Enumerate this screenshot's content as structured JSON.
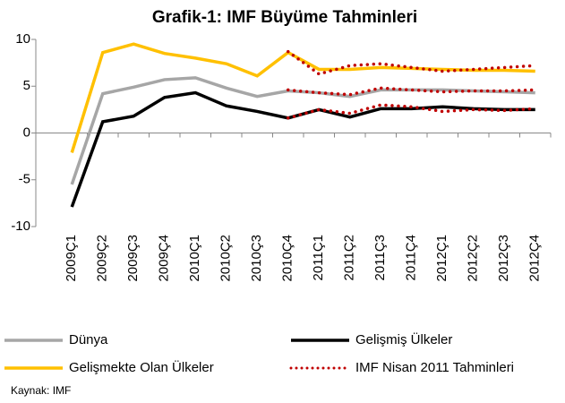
{
  "chart_data": {
    "type": "line",
    "title": "Grafik-1: IMF Büyüme Tahminleri",
    "source": "Kaynak: IMF",
    "categories": [
      "2009Ç1",
      "2009Ç2",
      "2009Ç3",
      "2009Ç4",
      "2010Ç1",
      "2010Ç2",
      "2010Ç3",
      "2010Ç4",
      "2011Ç1",
      "2011Ç2",
      "2011Ç3",
      "2011Ç4",
      "2012Ç1",
      "2012Ç2",
      "2012Ç3",
      "2012Ç4"
    ],
    "ylim": [
      -10,
      10
    ],
    "yticks": [
      -10,
      -5,
      0,
      5,
      10
    ],
    "grid": false,
    "series": [
      {
        "name": "Dünya",
        "color": "#a6a6a6",
        "values": [
          -5.5,
          4.2,
          4.9,
          5.7,
          5.9,
          4.8,
          3.9,
          4.5,
          4.3,
          3.9,
          4.6,
          4.6,
          4.6,
          4.5,
          4.4,
          4.3
        ]
      },
      {
        "name": "Gelişmiş Ülkeler",
        "color": "#000000",
        "values": [
          -7.9,
          1.2,
          1.8,
          3.8,
          4.3,
          2.9,
          2.3,
          1.6,
          2.5,
          1.7,
          2.6,
          2.6,
          2.8,
          2.6,
          2.5,
          2.5
        ]
      },
      {
        "name": "Gelişmekte Olan Ülkeler",
        "color": "#ffc000",
        "values": [
          -2.1,
          8.6,
          9.5,
          8.5,
          8.0,
          7.4,
          6.1,
          8.6,
          6.8,
          6.8,
          7.0,
          6.9,
          6.8,
          6.7,
          6.7,
          6.6
        ]
      }
    ],
    "forecast": {
      "name": "IMF Nisan 2011 Tahminleri",
      "color": "#c00000",
      "lines": [
        [
          null,
          null,
          null,
          null,
          null,
          null,
          null,
          4.6,
          4.3,
          4.1,
          4.8,
          4.6,
          4.4,
          4.5,
          4.5,
          4.6
        ],
        [
          null,
          null,
          null,
          null,
          null,
          null,
          null,
          1.6,
          2.5,
          2.1,
          3.0,
          2.8,
          2.3,
          2.5,
          2.4,
          2.6
        ],
        [
          null,
          null,
          null,
          null,
          null,
          null,
          null,
          8.7,
          6.3,
          7.2,
          7.4,
          7.0,
          6.6,
          6.8,
          7.0,
          7.2
        ]
      ]
    }
  }
}
